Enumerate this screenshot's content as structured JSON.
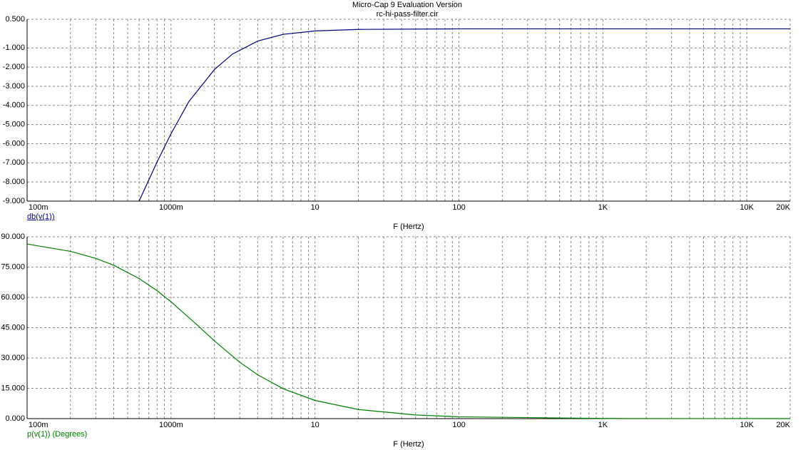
{
  "chart_data": [
    {
      "type": "line",
      "title": "Micro-Cap 9 Evaluation Version",
      "subtitle": "rc-hi-pass-filter.cir",
      "x_label": "F (Hertz)",
      "xscale": "log",
      "grid": true,
      "xlim": [
        0.1,
        20000
      ],
      "xticks": [
        {
          "value": 0.1,
          "label": "100m"
        },
        {
          "value": 1,
          "label": "1000m"
        },
        10,
        100,
        {
          "value": 1000,
          "label": "1K"
        },
        {
          "value": 10000,
          "label": "10K"
        },
        {
          "value": 20000,
          "label": "20K"
        }
      ],
      "xminorticks": [
        0.2,
        0.3,
        0.4,
        0.5,
        0.6,
        0.7,
        0.8,
        0.9,
        2,
        3,
        4,
        5,
        6,
        7,
        8,
        9,
        20,
        30,
        40,
        50,
        60,
        70,
        80,
        90,
        200,
        300,
        400,
        500,
        600,
        700,
        800,
        900,
        2000,
        3000,
        4000,
        5000,
        6000,
        7000,
        8000,
        9000
      ],
      "ylim": [
        -9,
        0.5
      ],
      "yticks": [
        {
          "value": 0.5,
          "label": "0.500"
        },
        {
          "value": -1,
          "label": "-1.000"
        },
        {
          "value": -2,
          "label": "-2.000"
        },
        {
          "value": -3,
          "label": "-3.000"
        },
        {
          "value": -4,
          "label": "-4.000"
        },
        {
          "value": -5,
          "label": "-5.000"
        },
        {
          "value": -6,
          "label": "-6.000"
        },
        {
          "value": -7,
          "label": "-7.000"
        },
        {
          "value": -8,
          "label": "-8.000"
        },
        {
          "value": -9,
          "label": "-9.000"
        }
      ],
      "x": [
        0.6,
        0.8,
        1,
        1.33,
        2,
        2.67,
        4,
        6,
        10,
        20,
        100,
        20000
      ],
      "series": [
        {
          "name": "db(v(1))",
          "color": "#00007f",
          "values": [
            -9.0,
            -6.95,
            -5.48,
            -3.8,
            -2.13,
            -1.32,
            -0.64,
            -0.29,
            -0.11,
            -0.03,
            0,
            0
          ]
        }
      ]
    },
    {
      "type": "line",
      "x_label": "F (Hertz)",
      "xscale": "log",
      "grid": true,
      "xlim": [
        0.1,
        20000
      ],
      "xticks": [
        {
          "value": 0.1,
          "label": "100m"
        },
        {
          "value": 1,
          "label": "1000m"
        },
        10,
        100,
        {
          "value": 1000,
          "label": "1K"
        },
        {
          "value": 10000,
          "label": "10K"
        },
        {
          "value": 20000,
          "label": "20K"
        }
      ],
      "xminorticks": [
        0.2,
        0.3,
        0.4,
        0.5,
        0.6,
        0.7,
        0.8,
        0.9,
        2,
        3,
        4,
        5,
        6,
        7,
        8,
        9,
        20,
        30,
        40,
        50,
        60,
        70,
        80,
        90,
        200,
        300,
        400,
        500,
        600,
        700,
        800,
        900,
        2000,
        3000,
        4000,
        5000,
        6000,
        7000,
        8000,
        9000
      ],
      "ylim": [
        0,
        90
      ],
      "yticks": [
        {
          "value": 0,
          "label": "0.000"
        },
        {
          "value": 15,
          "label": "15.000"
        },
        {
          "value": 30,
          "label": "30.000"
        },
        {
          "value": 45,
          "label": "45.000"
        },
        {
          "value": 60,
          "label": "60.000"
        },
        {
          "value": 75,
          "label": "75.000"
        },
        {
          "value": 90,
          "label": "90.000"
        }
      ],
      "x": [
        0.1,
        0.2,
        0.3,
        0.4,
        0.6,
        0.8,
        1,
        1.5,
        2,
        3,
        4,
        6,
        10,
        20,
        50,
        100,
        1000,
        20000
      ],
      "series": [
        {
          "name": "p(v(1)) (Degrees)",
          "color": "#007f00",
          "values": [
            86.4,
            82.8,
            79.3,
            75.9,
            69.3,
            63.3,
            57.8,
            46.7,
            38.5,
            27.9,
            21.7,
            14.8,
            9.0,
            4.5,
            1.8,
            0.9,
            0.09,
            0
          ]
        }
      ]
    }
  ]
}
